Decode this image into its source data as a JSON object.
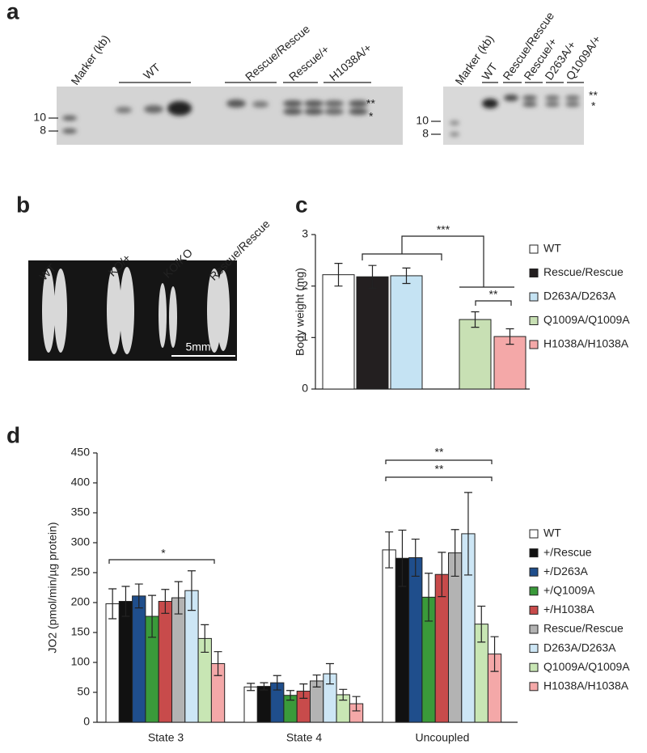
{
  "panel_a": {
    "label": "a",
    "left_blot": {
      "lanes": [
        "Marker (kb)",
        "WT",
        "Rescue/Rescue",
        "Rescue/+",
        "H1038A/+"
      ],
      "size_markers": [
        10,
        8
      ],
      "band_marks": [
        "**",
        "*"
      ]
    },
    "right_blot": {
      "lanes": [
        "Marker (kb)",
        "WT",
        "Rescue/Rescue",
        "Rescue/+",
        "D263A/+",
        "Q1009A/+"
      ],
      "size_markers": [
        10,
        8
      ],
      "band_marks": [
        "**",
        "*"
      ]
    }
  },
  "panel_b": {
    "label": "b",
    "samples": [
      "WT",
      "KO/+",
      "KO/KO",
      "Rescue/Rescue"
    ],
    "scale_bar": "5mm"
  },
  "chart_data": [
    {
      "type": "bar",
      "label": "c",
      "ylabel": "Body weight (mg)",
      "ylim": [
        0,
        3
      ],
      "yticks": [
        0,
        1,
        2,
        3
      ],
      "series": [
        {
          "name": "WT",
          "color": "#ffffff",
          "values": [
            2.22
          ],
          "errors": [
            0.22
          ]
        },
        {
          "name": "Rescue/Rescue",
          "color": "#231f20",
          "values": [
            2.18
          ],
          "errors": [
            0.22
          ]
        },
        {
          "name": "D263A/D263A",
          "color": "#c5e3f3",
          "values": [
            2.2
          ],
          "errors": [
            0.15
          ]
        },
        {
          "name": "Q1009A/Q1009A",
          "color": "#c8e0b4",
          "values": [
            1.35
          ],
          "errors": [
            0.15
          ]
        },
        {
          "name": "H1038A/H1038A",
          "color": "#f4a8a8",
          "values": [
            1.02
          ],
          "errors": [
            0.15
          ]
        }
      ],
      "annotations": [
        "***",
        "**"
      ]
    },
    {
      "type": "bar",
      "label": "d",
      "ylabel": "JO2 (pmol/min/µg protein)",
      "ylim": [
        0,
        450
      ],
      "yticks": [
        0,
        50,
        100,
        150,
        200,
        250,
        300,
        350,
        400,
        450
      ],
      "categories": [
        "State 3",
        "State 4",
        "Uncoupled"
      ],
      "series": [
        {
          "name": "WT",
          "color": "#ffffff",
          "values": [
            198,
            59,
            288
          ],
          "errors": [
            25,
            6,
            30
          ]
        },
        {
          "name": "+/Rescue",
          "color": "#111111",
          "values": [
            202,
            60,
            274
          ],
          "errors": [
            25,
            6,
            47
          ]
        },
        {
          "name": "+/D263A",
          "color": "#1f4e8c",
          "values": [
            211,
            66,
            275
          ],
          "errors": [
            20,
            12,
            31
          ]
        },
        {
          "name": "+/Q1009A",
          "color": "#3a9a3a",
          "values": [
            177,
            45,
            209
          ],
          "errors": [
            35,
            8,
            40
          ]
        },
        {
          "name": "+/H1038A",
          "color": "#c84b4b",
          "values": [
            202,
            52,
            247
          ],
          "errors": [
            20,
            12,
            37
          ]
        },
        {
          "name": "Rescue/Rescue",
          "color": "#b3b3b3",
          "values": [
            208,
            69,
            283
          ],
          "errors": [
            27,
            10,
            39
          ]
        },
        {
          "name": "D263A/D263A",
          "color": "#cde6f5",
          "values": [
            220,
            81,
            315
          ],
          "errors": [
            33,
            17,
            69
          ]
        },
        {
          "name": "Q1009A/Q1009A",
          "color": "#c8e6b4",
          "values": [
            140,
            46,
            164
          ],
          "errors": [
            23,
            9,
            30
          ]
        },
        {
          "name": "H1038A/H1038A",
          "color": "#f4a8a8",
          "values": [
            98,
            31,
            114
          ],
          "errors": [
            20,
            12,
            29
          ]
        }
      ],
      "annotations": [
        "*",
        "**",
        "**"
      ]
    }
  ]
}
